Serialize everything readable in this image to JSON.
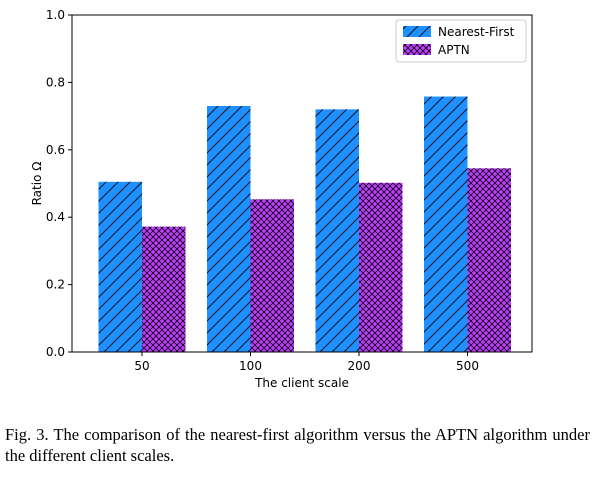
{
  "chart_data": {
    "type": "bar",
    "categories": [
      "50",
      "100",
      "200",
      "500"
    ],
    "series": [
      {
        "name": "Nearest-First",
        "values": [
          0.505,
          0.73,
          0.72,
          0.758
        ],
        "color": "#1e90ff",
        "hatch": "diagonal"
      },
      {
        "name": "APTN",
        "values": [
          0.372,
          0.453,
          0.502,
          0.545
        ],
        "color": "#bf3eff",
        "hatch": "crosshatch"
      }
    ],
    "title": "",
    "xlabel": "The client scale",
    "ylabel": "Ratio Ω",
    "ylim": [
      0,
      1.0
    ],
    "yticks": [
      "0.0",
      "0.2",
      "0.4",
      "0.6",
      "0.8",
      "1.0"
    ],
    "grid": false,
    "legend_position": "top-right"
  },
  "caption": "Fig. 3.   The comparison of the nearest-first algorithm versus the APTN algorithm under the different client scales."
}
